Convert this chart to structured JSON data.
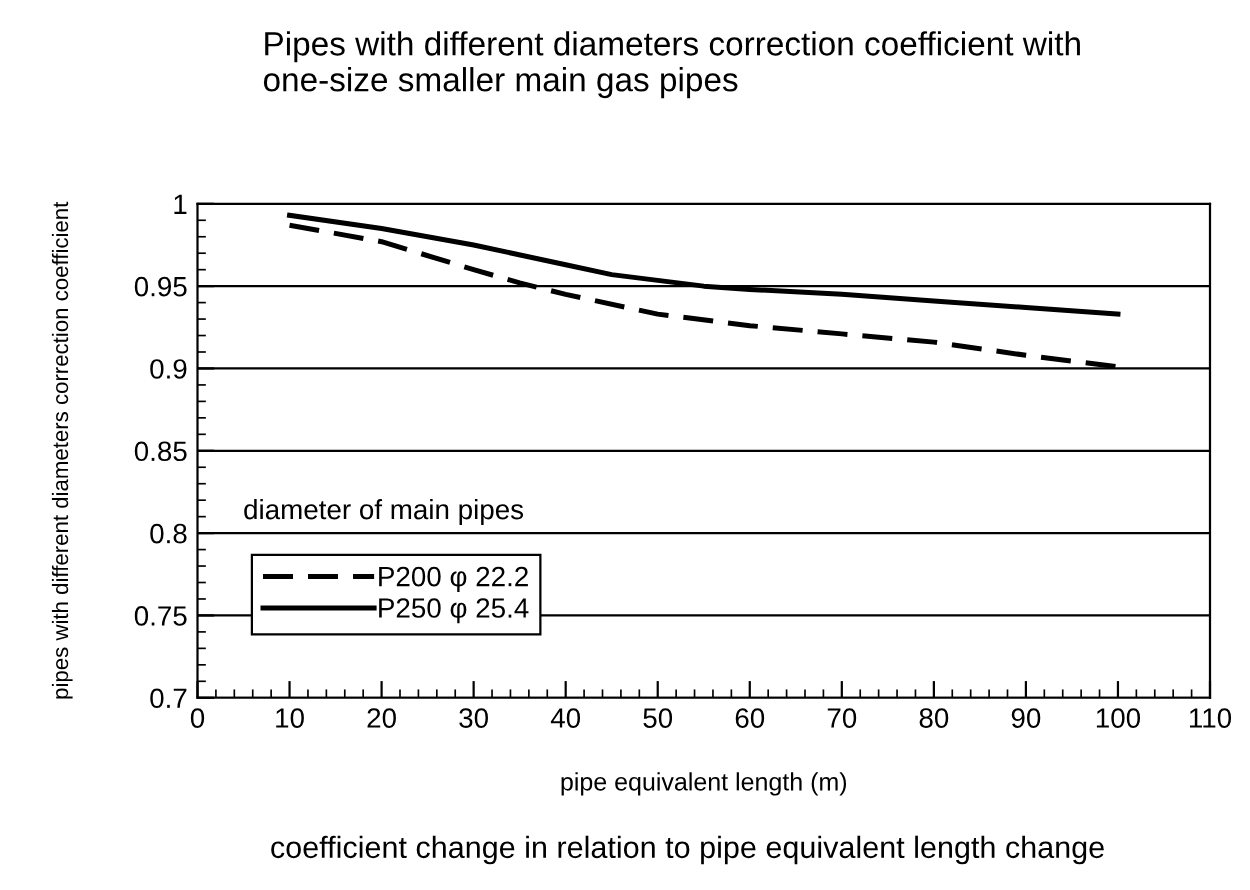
{
  "chart_data": {
    "type": "line",
    "title": "Pipes with different diameters correction coefficient with\none-size smaller main gas pipes",
    "xlabel": "pipe equivalent length (m)",
    "ylabel": "pipes with different diameters correction coefficient",
    "legend_title": "diameter of main pipes",
    "annotations": [
      "coefficient change in relation to pipe equivalent length change"
    ],
    "series": [
      {
        "name": "P200 φ 22.2",
        "color": "#000000",
        "line_style": "dashed",
        "x": [
          10,
          20,
          30,
          35,
          40,
          50,
          60,
          70,
          80,
          90,
          100
        ],
        "values": [
          0.987,
          0.977,
          0.96,
          0.952,
          0.945,
          0.933,
          0.926,
          0.921,
          0.916,
          0.908,
          0.901
        ]
      },
      {
        "name": "P250 φ 25.4",
        "color": "#000000",
        "line_style": "solid",
        "x": [
          10,
          20,
          30,
          40,
          45,
          55,
          60,
          70,
          80,
          90,
          100
        ],
        "values": [
          0.993,
          0.985,
          0.975,
          0.963,
          0.957,
          0.95,
          0.948,
          0.945,
          0.941,
          0.937,
          0.933
        ]
      }
    ],
    "xlim": [
      0,
      110
    ],
    "xticks": [
      0,
      10,
      20,
      30,
      40,
      50,
      60,
      70,
      80,
      90,
      100,
      110
    ],
    "ylim": [
      0.7,
      1.0
    ],
    "yticks": [
      {
        "value": 0.7,
        "label": "0.7"
      },
      {
        "value": 0.75,
        "label": "0.75"
      },
      {
        "value": 0.8,
        "label": "0.8"
      },
      {
        "value": 0.85,
        "label": "0.85"
      },
      {
        "value": 0.9,
        "label": "0.9"
      },
      {
        "value": 0.95,
        "label": "0.95"
      },
      {
        "value": 1.0,
        "label": "1"
      }
    ],
    "grid": "y",
    "legend": "bottom left",
    "marker": "none"
  }
}
